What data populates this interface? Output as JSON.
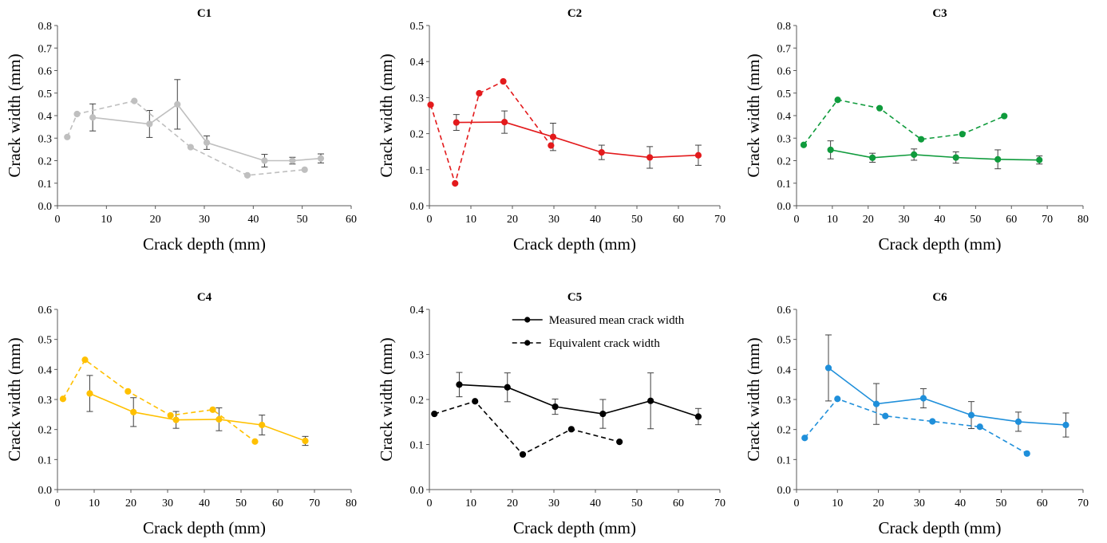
{
  "chart_data": [
    {
      "type": "line",
      "title": "C1",
      "xlabel": "Crack depth (mm)",
      "ylabel": "Crack width (mm)",
      "xlim": [
        0,
        60
      ],
      "xticks": [
        0,
        10,
        20,
        30,
        40,
        50,
        60
      ],
      "xtick_labels": [
        "0",
        "10",
        "20",
        "30",
        "40",
        "50",
        "60"
      ],
      "ylim": [
        0,
        0.8
      ],
      "yticks": [
        0,
        0.1,
        0.2,
        0.3,
        0.4,
        0.5,
        0.6,
        0.7,
        0.8
      ],
      "ytick_labels": [
        "0.0",
        "0.1",
        "0.2",
        "0.3",
        "0.4",
        "0.5",
        "0.6",
        "0.7",
        "0.8"
      ],
      "grid": false,
      "color": "#BFBFBF",
      "series": [
        {
          "style": "solid",
          "error_bars": true,
          "x": [
            7.2,
            18.8,
            24.5,
            30.5,
            42.3,
            48.0,
            53.8
          ],
          "y": [
            0.392,
            0.363,
            0.45,
            0.28,
            0.2,
            0.2,
            0.21
          ],
          "err": [
            0.06,
            0.06,
            0.11,
            0.03,
            0.028,
            0.015,
            0.02
          ]
        },
        {
          "style": "dashed",
          "error_bars": false,
          "x": [
            2.0,
            4.0,
            15.7,
            27.2,
            38.8,
            50.5
          ],
          "y": [
            0.305,
            0.407,
            0.465,
            0.26,
            0.135,
            0.16
          ]
        }
      ]
    },
    {
      "type": "line",
      "title": "C2",
      "xlabel": "Crack depth (mm)",
      "ylabel": "Crack width (mm)",
      "xlim": [
        0,
        70
      ],
      "xticks": [
        0,
        10,
        20,
        30,
        40,
        50,
        60,
        70
      ],
      "xtick_labels": [
        "0",
        "10",
        "20",
        "30",
        "40",
        "50",
        "60",
        "70"
      ],
      "ylim": [
        0,
        0.5
      ],
      "yticks": [
        0,
        0.1,
        0.2,
        0.3,
        0.4,
        0.5
      ],
      "ytick_labels": [
        "0.0",
        "0.1",
        "0.2",
        "0.3",
        "0.4",
        "0.5"
      ],
      "grid": false,
      "color": "#E31A1C",
      "series": [
        {
          "style": "solid",
          "error_bars": true,
          "x": [
            6.5,
            18.1,
            29.8,
            41.5,
            53.1,
            64.8
          ],
          "y": [
            0.231,
            0.232,
            0.191,
            0.148,
            0.134,
            0.14
          ],
          "err": [
            0.022,
            0.031,
            0.038,
            0.02,
            0.03,
            0.028
          ]
        },
        {
          "style": "dashed",
          "error_bars": false,
          "x": [
            0.3,
            6.2,
            12.0,
            17.8,
            29.3
          ],
          "y": [
            0.28,
            0.062,
            0.312,
            0.345,
            0.167
          ]
        }
      ]
    },
    {
      "type": "line",
      "title": "C3",
      "xlabel": "Crack depth (mm)",
      "ylabel": "Crack width (mm)",
      "xlim": [
        0,
        80
      ],
      "xticks": [
        0,
        10,
        20,
        30,
        40,
        50,
        60,
        70,
        80
      ],
      "xtick_labels": [
        "0",
        "10",
        "20",
        "30",
        "40",
        "50",
        "60",
        "70",
        "80"
      ],
      "ylim": [
        0,
        0.8
      ],
      "yticks": [
        0,
        0.1,
        0.2,
        0.3,
        0.4,
        0.5,
        0.6,
        0.7,
        0.8
      ],
      "ytick_labels": [
        "0.0",
        "0.1",
        "0.2",
        "0.3",
        "0.4",
        "0.5",
        "0.6",
        "0.7",
        "0.8"
      ],
      "grid": false,
      "color": "#0F9B3C",
      "series": [
        {
          "style": "solid",
          "error_bars": true,
          "x": [
            9.5,
            21.2,
            32.8,
            44.5,
            56.2,
            67.8
          ],
          "y": [
            0.248,
            0.213,
            0.227,
            0.214,
            0.206,
            0.203
          ],
          "err": [
            0.04,
            0.02,
            0.025,
            0.025,
            0.042,
            0.018
          ]
        },
        {
          "style": "dashed",
          "error_bars": false,
          "x": [
            2.0,
            11.5,
            23.2,
            34.8,
            46.3,
            58.0
          ],
          "y": [
            0.27,
            0.47,
            0.433,
            0.295,
            0.318,
            0.398
          ]
        }
      ]
    },
    {
      "type": "line",
      "title": "C4",
      "xlabel": "Crack depth (mm)",
      "ylabel": "Crack width (mm)",
      "xlim": [
        0,
        80
      ],
      "xticks": [
        0,
        10,
        20,
        30,
        40,
        50,
        60,
        70,
        80
      ],
      "xtick_labels": [
        "0",
        "10",
        "20",
        "30",
        "40",
        "50",
        "60",
        "70",
        "80"
      ],
      "ylim": [
        0,
        0.6
      ],
      "yticks": [
        0,
        0.1,
        0.2,
        0.3,
        0.4,
        0.5,
        0.6
      ],
      "ytick_labels": [
        "0.0",
        "0.1",
        "0.2",
        "0.3",
        "0.4",
        "0.5",
        "0.6"
      ],
      "grid": false,
      "color": "#FFC000",
      "series": [
        {
          "style": "solid",
          "error_bars": true,
          "x": [
            8.8,
            20.7,
            32.3,
            44.0,
            55.7,
            67.5
          ],
          "y": [
            0.32,
            0.258,
            0.232,
            0.234,
            0.215,
            0.162
          ],
          "err": [
            0.06,
            0.048,
            0.028,
            0.038,
            0.033,
            0.015
          ]
        },
        {
          "style": "dashed",
          "error_bars": false,
          "x": [
            1.5,
            7.5,
            19.2,
            30.8,
            42.3,
            53.8
          ],
          "y": [
            0.302,
            0.432,
            0.327,
            0.247,
            0.266,
            0.16
          ]
        }
      ]
    },
    {
      "type": "line",
      "title": "C5",
      "xlabel": "Crack depth (mm)",
      "ylabel": "Crack width (mm)",
      "xlim": [
        0,
        70
      ],
      "xticks": [
        0,
        10,
        20,
        30,
        40,
        50,
        60,
        70
      ],
      "xtick_labels": [
        "0",
        "10",
        "20",
        "30",
        "40",
        "50",
        "60",
        "70"
      ],
      "ylim": [
        0,
        0.4
      ],
      "yticks": [
        0,
        0.1,
        0.2,
        0.3,
        0.4
      ],
      "ytick_labels": [
        "0.0",
        "0.1",
        "0.2",
        "0.3",
        "0.4"
      ],
      "grid": false,
      "color": "#000000",
      "legend": {
        "placement": "top-right",
        "entries": [
          {
            "label": "Measured mean crack width",
            "style": "solid"
          },
          {
            "label": "Equivalent crack width",
            "style": "dashed"
          }
        ]
      },
      "series": [
        {
          "name": "Measured mean crack width",
          "style": "solid",
          "error_bars": true,
          "x": [
            7.2,
            18.8,
            30.3,
            41.8,
            53.3,
            64.8
          ],
          "y": [
            0.233,
            0.227,
            0.184,
            0.168,
            0.197,
            0.162
          ],
          "err": [
            0.027,
            0.032,
            0.017,
            0.032,
            0.062,
            0.018
          ]
        },
        {
          "name": "Equivalent crack width",
          "style": "dashed",
          "error_bars": false,
          "x": [
            1.2,
            11.0,
            22.5,
            34.2,
            45.8
          ],
          "y": [
            0.168,
            0.196,
            0.078,
            0.134,
            0.106
          ]
        }
      ]
    },
    {
      "type": "line",
      "title": "C6",
      "xlabel": "Crack depth (mm)",
      "ylabel": "Crack width (mm)",
      "xlim": [
        0,
        70
      ],
      "xticks": [
        0,
        10,
        20,
        30,
        40,
        50,
        60,
        70
      ],
      "xtick_labels": [
        "0",
        "10",
        "20",
        "30",
        "40",
        "50",
        "60",
        "70"
      ],
      "ylim": [
        0,
        0.6
      ],
      "yticks": [
        0,
        0.1,
        0.2,
        0.3,
        0.4,
        0.5,
        0.6
      ],
      "ytick_labels": [
        "0.0",
        "0.1",
        "0.2",
        "0.3",
        "0.4",
        "0.5",
        "0.6"
      ],
      "grid": false,
      "color": "#1F8FDA",
      "series": [
        {
          "style": "solid",
          "error_bars": true,
          "x": [
            7.8,
            19.5,
            31.0,
            42.7,
            54.2,
            65.8
          ],
          "y": [
            0.405,
            0.285,
            0.304,
            0.248,
            0.226,
            0.215
          ],
          "err": [
            0.11,
            0.068,
            0.032,
            0.045,
            0.032,
            0.04
          ]
        },
        {
          "style": "dashed",
          "error_bars": false,
          "x": [
            2.0,
            10.0,
            21.7,
            33.2,
            44.8,
            56.3
          ],
          "y": [
            0.172,
            0.302,
            0.245,
            0.227,
            0.209,
            0.12
          ]
        }
      ]
    }
  ]
}
